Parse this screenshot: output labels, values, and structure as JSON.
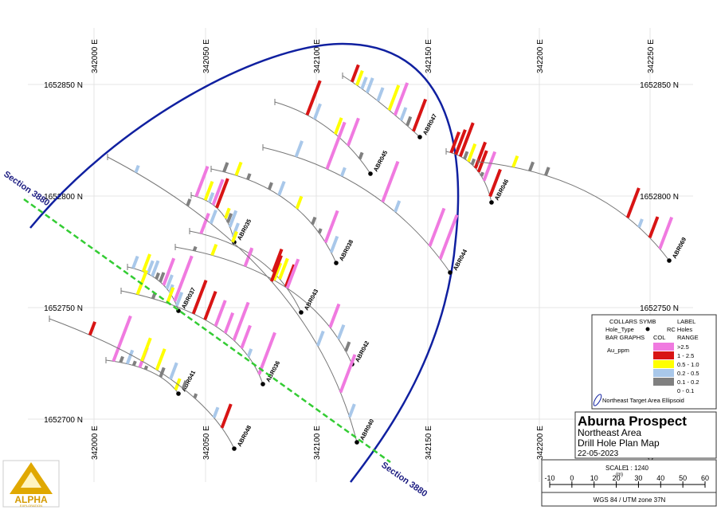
{
  "map": {
    "grid": {
      "eastings": [
        "342000 E",
        "342050 E",
        "342100 E",
        "342150 E",
        "342200 E",
        "342250 E"
      ],
      "northings": [
        "1652850 N",
        "1652800 N",
        "1652750 N",
        "1652700 N"
      ]
    },
    "section_label": "Section 3880",
    "holes": [
      "ABR047",
      "ABR045",
      "ABR046",
      "ABR069",
      "ABR044",
      "ABR038",
      "ABR035",
      "ABR043",
      "ABR042",
      "ABR037",
      "ABR036",
      "ABR040",
      "ABR041",
      "ABR048"
    ],
    "legend": {
      "collars_symb": "COLLARS SYMB",
      "label": "LABEL",
      "hole_type": "Hole_Type",
      "rc_holes": "RC Holes",
      "bar_graphs": "BAR GRAPHS",
      "col": "COL",
      "range": "RANGE",
      "variable": "Au_ppm",
      "ranges": [
        {
          "label": ">2.5",
          "color": "#f07ae0"
        },
        {
          "label": "1 - 2.5",
          "color": "#d81414"
        },
        {
          "label": "0.5 - 1.0",
          "color": "#ffff00"
        },
        {
          "label": "0.2 - 0.5",
          "color": "#a9c8ea"
        },
        {
          "label": "0.1 - 0.2",
          "color": "#808080"
        },
        {
          "label": "0 - 0.1",
          "color": "none"
        }
      ],
      "ellipsoid": "Northeast Target Area Ellipsoid"
    },
    "title_block": {
      "title": "Aburna Prospect",
      "line1": "Northeast Area",
      "line2": "Drill Hole Plan Map",
      "date": "22-05-2023"
    },
    "scale": {
      "label": "SCALE",
      "ratio": "1 : 1240",
      "unit": "(m)",
      "ticks": [
        -10,
        0,
        10,
        20,
        30,
        40,
        50,
        60
      ],
      "projection": "WGS 84 / UTM zone 37N"
    },
    "logo": {
      "name": "ALPHA",
      "sub": "EXPLORATION"
    }
  }
}
